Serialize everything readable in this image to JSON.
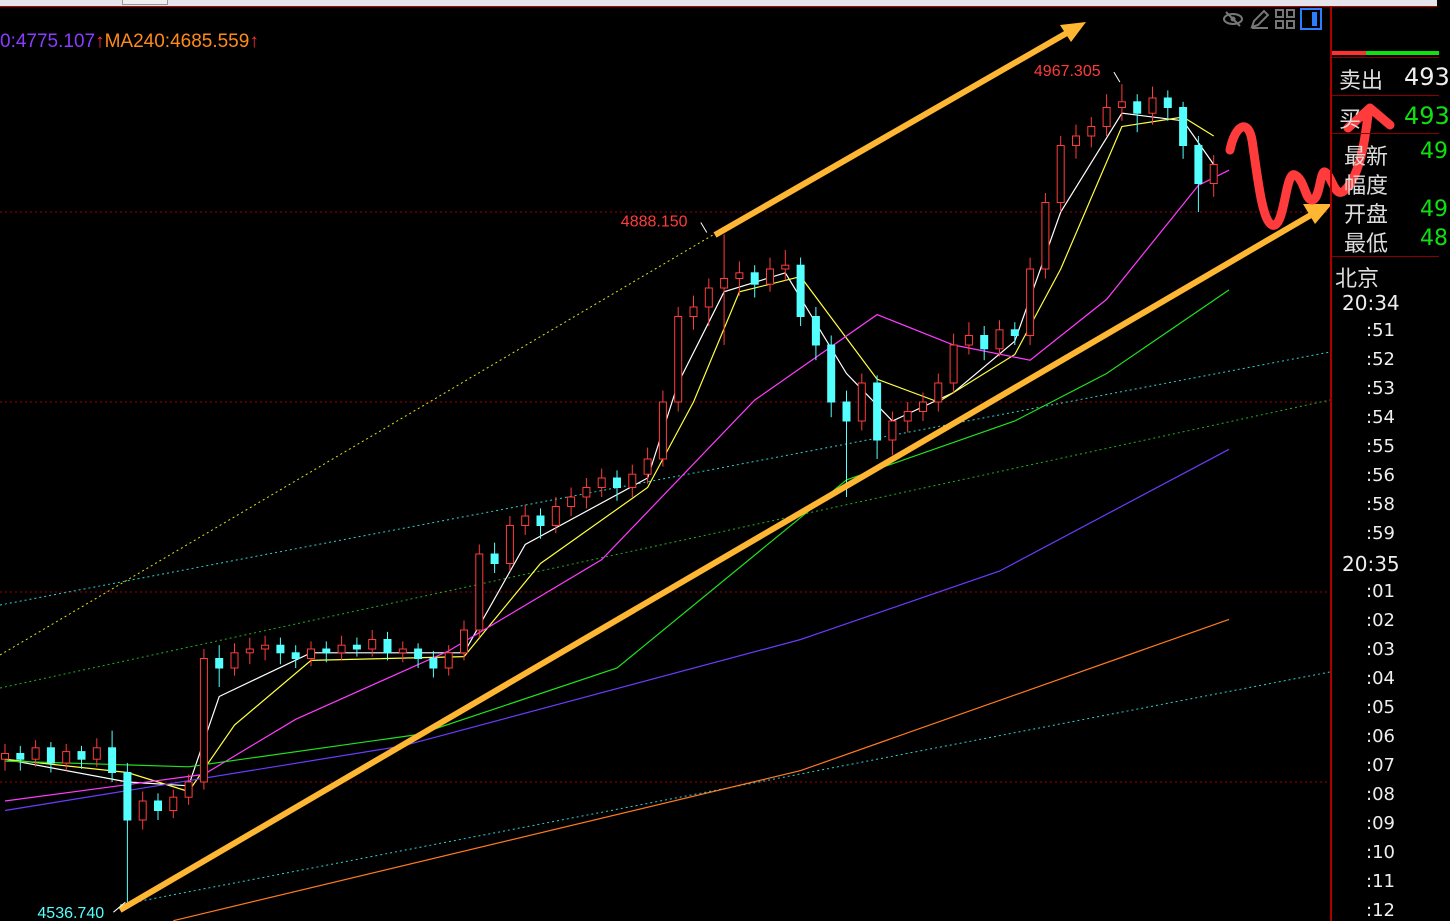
{
  "legend": {
    "ma_prev": "0:4775.107",
    "ma240": "MA240:4685.559",
    "arrow": "↑"
  },
  "colors": {
    "up": "#ff3b3b",
    "down": "#54ffff",
    "grid": "#a00000",
    "ma_white": "#ffffff",
    "ma_yellow": "#ffff40",
    "ma_magenta": "#ff3cff",
    "ma_green": "#20e020",
    "ma_purple": "#6a3cff",
    "ma_orange": "#ff7a20",
    "annotation_arrow": "#ffb733",
    "annotation_scribble": "#ff3b3b"
  },
  "toolbar": {
    "icons": [
      "eye-hide-icon",
      "pencil-icon",
      "grid-layout-icon",
      "panel-toggle-icon"
    ]
  },
  "chart_data": {
    "type": "candlestick",
    "ylim": [
      4527,
      4975
    ],
    "grid": {
      "horizontal_levels": [
        4900,
        4800,
        4700,
        4600
      ]
    },
    "annotations": [
      {
        "text": "4888.150",
        "price": 4888.15,
        "index": 46
      },
      {
        "text": "4967.305",
        "price": 4967.305,
        "index": 73
      },
      {
        "text": "4536.740",
        "price": 4536.74,
        "index": 8
      }
    ],
    "candles": [
      [
        4612,
        4620,
        4606,
        4615
      ],
      [
        4615,
        4619,
        4606,
        4612
      ],
      [
        4612,
        4622,
        4608,
        4618
      ],
      [
        4618,
        4621,
        4605,
        4610
      ],
      [
        4610,
        4620,
        4606,
        4616
      ],
      [
        4616,
        4619,
        4607,
        4612
      ],
      [
        4612,
        4623,
        4608,
        4618
      ],
      [
        4618,
        4627,
        4600,
        4605
      ],
      [
        4605,
        4610,
        4536.74,
        4580
      ],
      [
        4580,
        4595,
        4575,
        4590
      ],
      [
        4590,
        4594,
        4580,
        4585
      ],
      [
        4585,
        4596,
        4581,
        4592
      ],
      [
        4592,
        4604,
        4588,
        4600
      ],
      [
        4600,
        4670,
        4596,
        4665
      ],
      [
        4665,
        4672,
        4650,
        4660
      ],
      [
        4660,
        4673,
        4656,
        4668
      ],
      [
        4668,
        4676,
        4662,
        4670
      ],
      [
        4670,
        4677,
        4664,
        4672
      ],
      [
        4672,
        4676,
        4662,
        4668
      ],
      [
        4668,
        4672,
        4660,
        4665
      ],
      [
        4665,
        4674,
        4661,
        4670
      ],
      [
        4670,
        4674,
        4663,
        4668
      ],
      [
        4668,
        4677,
        4664,
        4672
      ],
      [
        4672,
        4676,
        4666,
        4670
      ],
      [
        4670,
        4680,
        4666,
        4675
      ],
      [
        4675,
        4679,
        4664,
        4668
      ],
      [
        4668,
        4674,
        4663,
        4670
      ],
      [
        4670,
        4673,
        4660,
        4665
      ],
      [
        4665,
        4669,
        4655,
        4660
      ],
      [
        4660,
        4672,
        4656,
        4668
      ],
      [
        4668,
        4685,
        4664,
        4680
      ],
      [
        4680,
        4725,
        4676,
        4720
      ],
      [
        4720,
        4726,
        4710,
        4715
      ],
      [
        4715,
        4740,
        4711,
        4735
      ],
      [
        4735,
        4746,
        4730,
        4740
      ],
      [
        4740,
        4744,
        4728,
        4735
      ],
      [
        4735,
        4750,
        4731,
        4745
      ],
      [
        4745,
        4755,
        4740,
        4750
      ],
      [
        4750,
        4760,
        4744,
        4755
      ],
      [
        4755,
        4765,
        4750,
        4760
      ],
      [
        4760,
        4764,
        4748,
        4755
      ],
      [
        4755,
        4767,
        4750,
        4762
      ],
      [
        4762,
        4776,
        4757,
        4770
      ],
      [
        4770,
        4806,
        4766,
        4800
      ],
      [
        4800,
        4850,
        4795,
        4845
      ],
      [
        4845,
        4856,
        4838,
        4850
      ],
      [
        4850,
        4865,
        4840,
        4860
      ],
      [
        4860,
        4888.15,
        4830,
        4865
      ],
      [
        4865,
        4874,
        4856,
        4868
      ],
      [
        4868,
        4872,
        4855,
        4862
      ],
      [
        4862,
        4876,
        4858,
        4870
      ],
      [
        4870,
        4880,
        4864,
        4872
      ],
      [
        4872,
        4876,
        4840,
        4845
      ],
      [
        4845,
        4850,
        4822,
        4830
      ],
      [
        4830,
        4835,
        4792,
        4800
      ],
      [
        4800,
        4806,
        4750,
        4790
      ],
      [
        4790,
        4815,
        4785,
        4810
      ],
      [
        4810,
        4814,
        4770,
        4780
      ],
      [
        4780,
        4795,
        4772,
        4790
      ],
      [
        4790,
        4800,
        4784,
        4795
      ],
      [
        4795,
        4805,
        4790,
        4800
      ],
      [
        4800,
        4815,
        4795,
        4810
      ],
      [
        4810,
        4836,
        4805,
        4830
      ],
      [
        4830,
        4842,
        4825,
        4835
      ],
      [
        4835,
        4840,
        4822,
        4828
      ],
      [
        4828,
        4843,
        4824,
        4838
      ],
      [
        4838,
        4842,
        4830,
        4835
      ],
      [
        4835,
        4876,
        4830,
        4870
      ],
      [
        4870,
        4910,
        4865,
        4905
      ],
      [
        4905,
        4940,
        4900,
        4935
      ],
      [
        4935,
        4946,
        4928,
        4940
      ],
      [
        4940,
        4950,
        4934,
        4945
      ],
      [
        4945,
        4962,
        4940,
        4955
      ],
      [
        4955,
        4967.305,
        4948,
        4958
      ],
      [
        4958,
        4962,
        4942,
        4952
      ],
      [
        4952,
        4966,
        4946,
        4960
      ],
      [
        4960,
        4964,
        4948,
        4955
      ],
      [
        4955,
        4958,
        4928,
        4935
      ],
      [
        4935,
        4940,
        4900,
        4915
      ],
      [
        4915,
        4930,
        4908,
        4925
      ]
    ],
    "series": [
      {
        "name": "",
        "color": "ma_white",
        "points": [
          [
            0,
            4612
          ],
          [
            8,
            4600
          ],
          [
            12,
            4598
          ],
          [
            14,
            4645
          ],
          [
            20,
            4668
          ],
          [
            30,
            4668
          ],
          [
            34,
            4725
          ],
          [
            42,
            4760
          ],
          [
            44,
            4810
          ],
          [
            47,
            4858
          ],
          [
            51,
            4868
          ],
          [
            55,
            4815
          ],
          [
            58,
            4790
          ],
          [
            62,
            4805
          ],
          [
            66,
            4832
          ],
          [
            69,
            4900
          ],
          [
            73,
            4952
          ],
          [
            77,
            4948
          ],
          [
            79,
            4925
          ]
        ]
      },
      {
        "name": "",
        "color": "ma_yellow",
        "points": [
          [
            0,
            4612
          ],
          [
            8,
            4605
          ],
          [
            12,
            4595
          ],
          [
            15,
            4630
          ],
          [
            20,
            4664
          ],
          [
            30,
            4666
          ],
          [
            35,
            4715
          ],
          [
            42,
            4755
          ],
          [
            45,
            4800
          ],
          [
            48,
            4858
          ],
          [
            52,
            4866
          ],
          [
            57,
            4812
          ],
          [
            61,
            4800
          ],
          [
            66,
            4825
          ],
          [
            69,
            4870
          ],
          [
            73,
            4945
          ],
          [
            77,
            4950
          ],
          [
            79,
            4940
          ]
        ]
      },
      {
        "name": "",
        "color": "ma_magenta",
        "points": [
          [
            0,
            4590
          ],
          [
            13,
            4604
          ],
          [
            19,
            4633
          ],
          [
            29,
            4669
          ],
          [
            39,
            4717
          ],
          [
            49,
            4801
          ],
          [
            57,
            4846
          ],
          [
            62,
            4830
          ],
          [
            67,
            4822
          ],
          [
            72,
            4854
          ],
          [
            78,
            4914
          ],
          [
            80,
            4922
          ]
        ]
      },
      {
        "name": "",
        "color": "ma_green",
        "points": [
          [
            0,
            4611
          ],
          [
            12,
            4608
          ],
          [
            27,
            4625
          ],
          [
            40,
            4660
          ],
          [
            55,
            4759
          ],
          [
            66,
            4790
          ],
          [
            72,
            4815
          ],
          [
            80,
            4859
          ]
        ]
      },
      {
        "name": "",
        "color": "ma_purple",
        "points": [
          [
            0,
            4585
          ],
          [
            26,
            4619
          ],
          [
            52,
            4675
          ],
          [
            65,
            4711
          ],
          [
            80,
            4775.107
          ]
        ]
      },
      {
        "name": "MA240",
        "color": "ma_orange",
        "points": [
          [
            11,
            4527
          ],
          [
            52,
            4606
          ],
          [
            80,
            4685.559
          ]
        ]
      }
    ]
  },
  "panel": {
    "sell_label": "卖出",
    "sell_value": "493",
    "buy_label": "买",
    "buy_value": "493",
    "rows": [
      {
        "label": "最新",
        "value": "49"
      },
      {
        "label": "幅度",
        "value": ""
      },
      {
        "label": "开盘",
        "value": "49"
      },
      {
        "label": "最低",
        "value": "48"
      }
    ],
    "timezone": "北京",
    "times": [
      "20:34",
      ":51",
      ":52",
      ":53",
      ":54",
      ":55",
      ":56",
      ":58",
      ":59",
      "20:35",
      ":01",
      ":02",
      ":03",
      ":04",
      ":05",
      ":06",
      ":07",
      ":08",
      ":09",
      ":10",
      ":11",
      ":12"
    ]
  }
}
